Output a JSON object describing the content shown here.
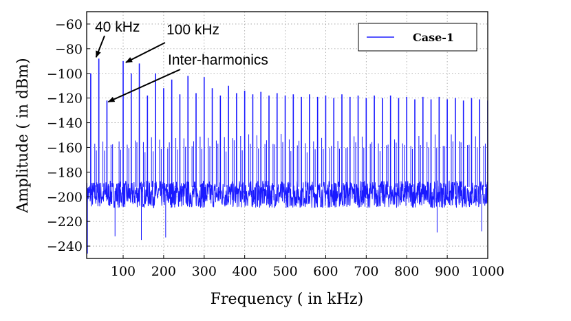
{
  "chart_data": {
    "type": "line",
    "title": "",
    "xlabel": "Frequency ( in kHz)",
    "ylabel": "Amplitude ( in dBm)",
    "xlim": [
      10,
      1000
    ],
    "ylim": [
      -250,
      -50
    ],
    "xticks": [
      100,
      200,
      300,
      400,
      500,
      600,
      700,
      800,
      900,
      1000
    ],
    "xtick_labels": [
      "100",
      "200",
      "300",
      "400",
      "500",
      "600",
      "700",
      "800",
      "900",
      "1000"
    ],
    "yticks": [
      -60,
      -80,
      -100,
      -120,
      -140,
      -160,
      -180,
      -200,
      -220,
      -240
    ],
    "ytick_labels": [
      "−60",
      "−80",
      "−100",
      "−120",
      "−140",
      "−160",
      "−180",
      "−200",
      "−220",
      "−240"
    ],
    "grid": true,
    "legend_position": "top-right",
    "series": [
      {
        "name": "Case-1",
        "color": "#1a1aff",
        "noise_floor_db": -198,
        "peaks": [
          {
            "f": 20,
            "db": -100
          },
          {
            "f": 40,
            "db": -88
          },
          {
            "f": 60,
            "db": -122
          },
          {
            "f": 100,
            "db": -90
          },
          {
            "f": 120,
            "db": -100
          },
          {
            "f": 140,
            "db": -92
          },
          {
            "f": 160,
            "db": -118
          },
          {
            "f": 180,
            "db": -100
          },
          {
            "f": 200,
            "db": -112
          },
          {
            "f": 220,
            "db": -105
          },
          {
            "f": 240,
            "db": -117
          },
          {
            "f": 260,
            "db": -102
          },
          {
            "f": 280,
            "db": -116
          },
          {
            "f": 300,
            "db": -103
          },
          {
            "f": 320,
            "db": -112
          },
          {
            "f": 340,
            "db": -118
          },
          {
            "f": 360,
            "db": -110
          },
          {
            "f": 380,
            "db": -116
          },
          {
            "f": 400,
            "db": -114
          },
          {
            "f": 420,
            "db": -117
          },
          {
            "f": 440,
            "db": -115
          },
          {
            "f": 460,
            "db": -118
          },
          {
            "f": 480,
            "db": -116
          },
          {
            "f": 500,
            "db": -118
          },
          {
            "f": 520,
            "db": -117
          },
          {
            "f": 540,
            "db": -119
          },
          {
            "f": 560,
            "db": -117
          },
          {
            "f": 580,
            "db": -119
          },
          {
            "f": 600,
            "db": -118
          },
          {
            "f": 620,
            "db": -120
          },
          {
            "f": 640,
            "db": -117
          },
          {
            "f": 660,
            "db": -119
          },
          {
            "f": 680,
            "db": -118
          },
          {
            "f": 700,
            "db": -120
          },
          {
            "f": 720,
            "db": -118
          },
          {
            "f": 740,
            "db": -120
          },
          {
            "f": 760,
            "db": -118
          },
          {
            "f": 780,
            "db": -120
          },
          {
            "f": 800,
            "db": -119
          },
          {
            "f": 820,
            "db": -121
          },
          {
            "f": 840,
            "db": -119
          },
          {
            "f": 860,
            "db": -121
          },
          {
            "f": 880,
            "db": -119
          },
          {
            "f": 900,
            "db": -121
          },
          {
            "f": 920,
            "db": -120
          },
          {
            "f": 940,
            "db": -122
          },
          {
            "f": 960,
            "db": -120
          },
          {
            "f": 980,
            "db": -121
          },
          {
            "f": 1000,
            "db": -122
          }
        ],
        "inter_harmonic_level_db": -155,
        "min_dips": [
          {
            "f": 12,
            "db": -246
          },
          {
            "f": 80,
            "db": -232
          },
          {
            "f": 145,
            "db": -235
          },
          {
            "f": 205,
            "db": -233
          },
          {
            "f": 875,
            "db": -229
          },
          {
            "f": 985,
            "db": -228
          }
        ]
      }
    ],
    "annotations": [
      {
        "text": "40 kHz",
        "target_f": 40,
        "target_db": -88
      },
      {
        "text": "100 kHz",
        "target_f": 100,
        "target_db": -90
      },
      {
        "text": "Inter-harmonics",
        "target_f": 60,
        "target_db": -122
      }
    ]
  }
}
